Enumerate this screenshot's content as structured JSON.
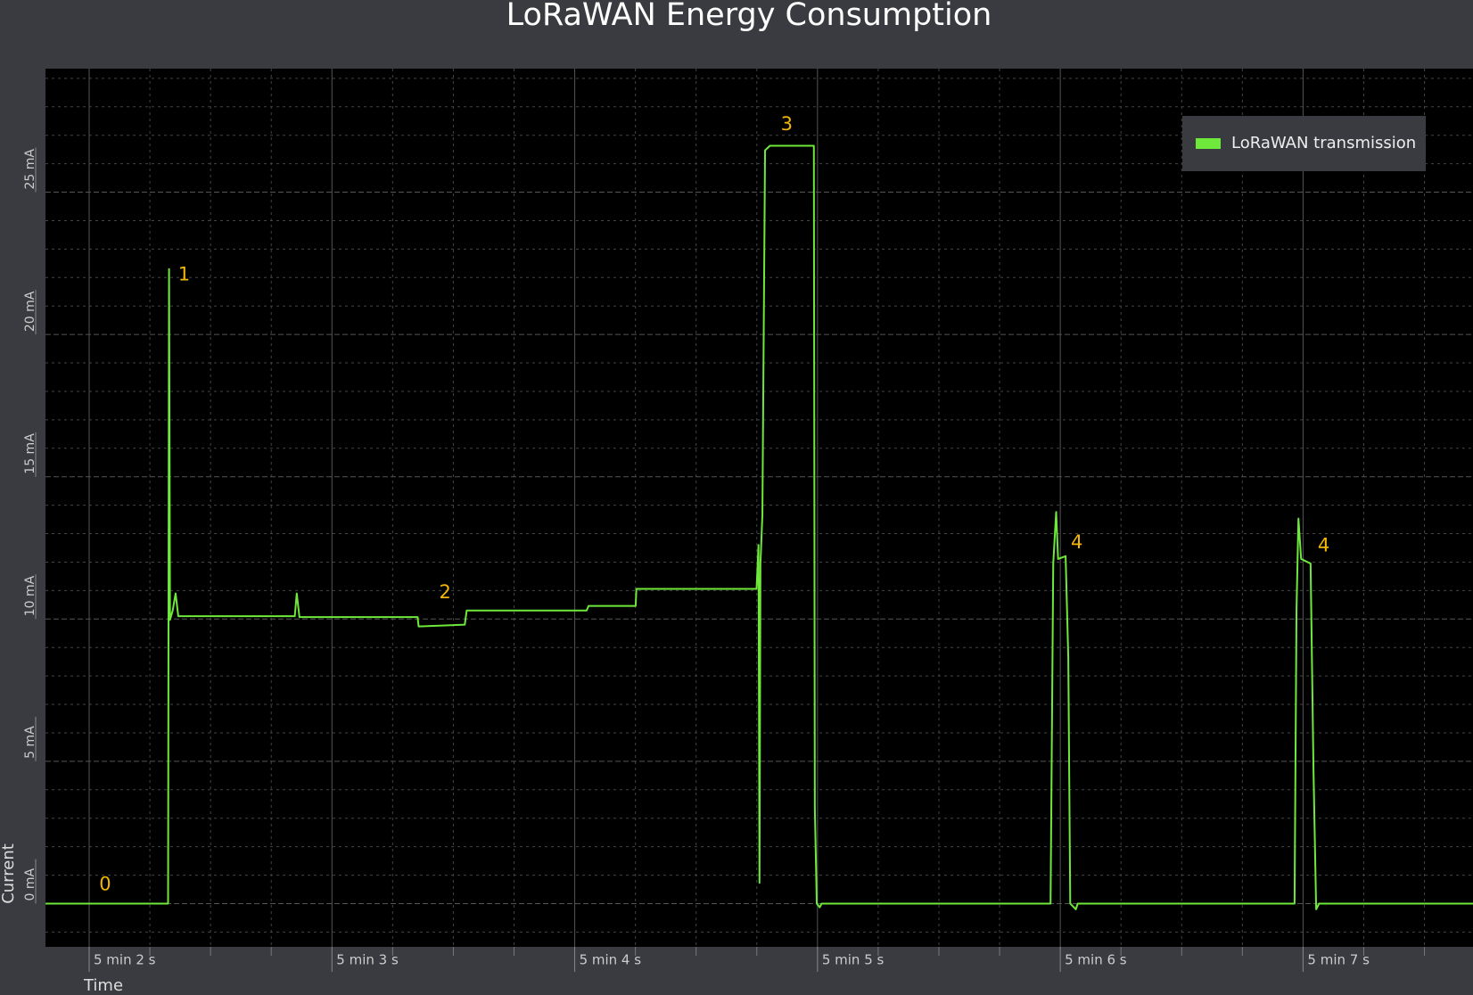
{
  "chart_data": {
    "type": "line",
    "title": "LoRaWAN Energy Consumption",
    "x_label": "Time",
    "y_label": "Current",
    "x": [
      301.82,
      302.325,
      302.329,
      302.333,
      302.344,
      302.356,
      302.367,
      302.599,
      302.847,
      302.855,
      302.866,
      303.353,
      303.357,
      303.547,
      303.555,
      304.049,
      304.057,
      304.251,
      304.254,
      304.749,
      304.757,
      304.761,
      304.765,
      304.773,
      304.784,
      304.804,
      304.985,
      304.989,
      304.997,
      305.009,
      305.017,
      305.96,
      305.971,
      305.983,
      305.991,
      306.022,
      306.033,
      306.041,
      306.064,
      306.072,
      306.965,
      306.973,
      306.981,
      306.992,
      307.031,
      307.043,
      307.054,
      307.066,
      307.7
    ],
    "series": [
      {
        "name": "LoRaWAN transmission",
        "color": "#6fe83c",
        "values": [
          0,
          0,
          22.3,
          9.97,
          10.3,
          10.9,
          10.1,
          10.1,
          10.1,
          10.9,
          10.07,
          10.07,
          9.74,
          9.8,
          10.3,
          10.3,
          10.46,
          10.46,
          11.06,
          11.06,
          12.6,
          0.73,
          11.95,
          13.66,
          26.47,
          26.63,
          26.63,
          3.37,
          0,
          -0.13,
          0,
          0,
          11.95,
          13.76,
          12.11,
          12.21,
          8.65,
          0,
          -0.2,
          0,
          0,
          10.3,
          13.53,
          12.11,
          11.95,
          4.69,
          -0.2,
          0,
          0
        ]
      }
    ],
    "annotations": [
      {
        "text": "0",
        "x": 302.066,
        "y": 0.66
      },
      {
        "text": "1",
        "x": 302.391,
        "y": 22.08
      },
      {
        "text": "2",
        "x": 303.466,
        "y": 10.92
      },
      {
        "text": "3",
        "x": 304.873,
        "y": 27.36
      },
      {
        "text": "4",
        "x": 306.068,
        "y": 12.67
      },
      {
        "text": "4",
        "x": 307.085,
        "y": 12.57
      }
    ],
    "xlim": [
      301.82,
      307.7
    ],
    "ylim": [
      -1.52,
      29.34
    ],
    "xticks": [
      {
        "value": 302,
        "label": "5 min 2 s"
      },
      {
        "value": 303,
        "label": "5 min 3 s"
      },
      {
        "value": 304,
        "label": "5 min 4 s"
      },
      {
        "value": 305,
        "label": "5 min 5 s"
      },
      {
        "value": 306,
        "label": "5 min 6 s"
      },
      {
        "value": 307,
        "label": "5 min 7 s"
      }
    ],
    "yticks": [
      {
        "value": 0,
        "label": "0 mA"
      },
      {
        "value": 5,
        "label": "5 mA"
      },
      {
        "value": 10,
        "label": "10 mA"
      },
      {
        "value": 15,
        "label": "15 mA"
      },
      {
        "value": 20,
        "label": "20 mA"
      },
      {
        "value": 25,
        "label": "25 mA"
      }
    ],
    "x_minor_ticks": [
      302.25,
      302.5,
      302.75,
      303.25,
      303.5,
      303.75,
      304.25,
      304.5,
      304.75,
      305.25,
      305.5,
      305.75,
      306.25,
      306.5,
      306.75,
      307.25,
      307.5
    ],
    "y_minor_ticks": [
      -1,
      1,
      2,
      3,
      4,
      6,
      7,
      8,
      9,
      11,
      12,
      13,
      14,
      16,
      17,
      18,
      19,
      21,
      22,
      23,
      24,
      26,
      27,
      28,
      29
    ],
    "grid": true,
    "legend": "upper right",
    "annotation_color": "#f2b705"
  }
}
